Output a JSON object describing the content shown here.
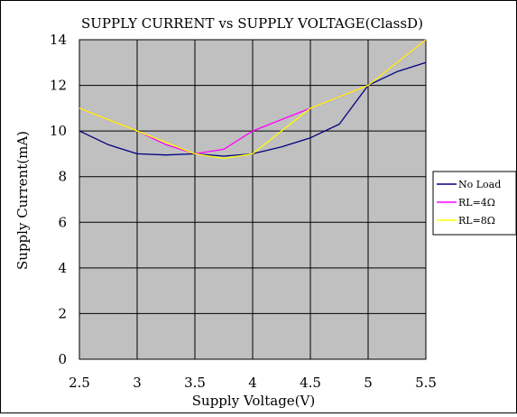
{
  "chart_data": {
    "type": "line",
    "title": "SUPPLY CURRENT vs SUPPLY VOLTAGE(ClassD)",
    "xlabel": "Supply Voltage(V)",
    "ylabel": "Supply Current(mA)",
    "xlim": [
      2.5,
      5.5
    ],
    "ylim": [
      0,
      14
    ],
    "x_ticks": [
      "2.5",
      "3",
      "3.5",
      "4",
      "4.5",
      "5",
      "5.5"
    ],
    "y_ticks": [
      "0",
      "2",
      "4",
      "6",
      "8",
      "10",
      "12",
      "14"
    ],
    "grid": true,
    "legend_position": "right",
    "plot_background": "#c0c0c0",
    "series": [
      {
        "name": "No Load",
        "color": "#000080",
        "points": [
          [
            2.5,
            10.0
          ],
          [
            2.75,
            9.4
          ],
          [
            3.0,
            9.0
          ],
          [
            3.25,
            8.95
          ],
          [
            3.5,
            9.0
          ],
          [
            3.75,
            8.9
          ],
          [
            4.0,
            9.0
          ],
          [
            4.25,
            9.3
          ],
          [
            4.5,
            9.7
          ],
          [
            4.75,
            10.3
          ],
          [
            5.0,
            12.0
          ],
          [
            5.25,
            12.6
          ],
          [
            5.5,
            13.0
          ]
        ]
      },
      {
        "name": "RL=4Ω",
        "color": "#ff00ff",
        "points": [
          [
            2.5,
            11.0
          ],
          [
            2.75,
            10.5
          ],
          [
            3.0,
            10.0
          ],
          [
            3.25,
            9.4
          ],
          [
            3.5,
            9.0
          ],
          [
            3.75,
            9.2
          ],
          [
            4.0,
            10.0
          ],
          [
            4.25,
            10.5
          ],
          [
            4.5,
            11.0
          ],
          [
            4.75,
            11.5
          ],
          [
            5.0,
            12.0
          ],
          [
            5.25,
            13.0
          ],
          [
            5.5,
            14.0
          ]
        ]
      },
      {
        "name": "RL=8Ω",
        "color": "#ffff00",
        "points": [
          [
            2.5,
            11.0
          ],
          [
            2.75,
            10.5
          ],
          [
            3.0,
            10.0
          ],
          [
            3.25,
            9.5
          ],
          [
            3.5,
            9.0
          ],
          [
            3.75,
            8.8
          ],
          [
            4.0,
            9.0
          ],
          [
            4.25,
            10.0
          ],
          [
            4.5,
            11.0
          ],
          [
            4.75,
            11.5
          ],
          [
            5.0,
            12.0
          ],
          [
            5.25,
            13.0
          ],
          [
            5.5,
            14.0
          ]
        ]
      }
    ]
  }
}
